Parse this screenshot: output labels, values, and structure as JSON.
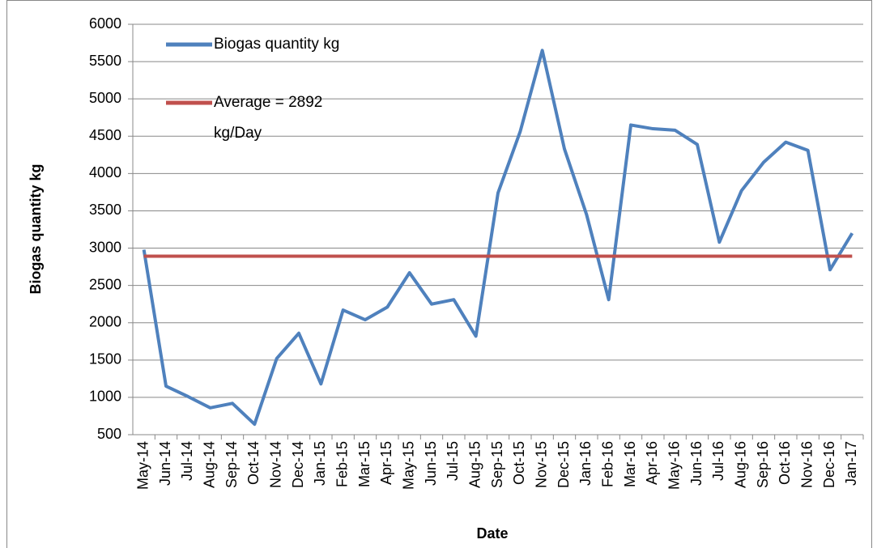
{
  "chart_data": {
    "type": "line",
    "y_label": "Biogas quantity kg",
    "x_label": "Date",
    "categories": [
      "May-14",
      "Jun-14",
      "Jul-14",
      "Aug-14",
      "Sep-14",
      "Oct-14",
      "Nov-14",
      "Dec-14",
      "Jan-15",
      "Feb-15",
      "Mar-15",
      "Apr-15",
      "May-15",
      "Jun-15",
      "Jul-15",
      "Aug-15",
      "Sep-15",
      "Oct-15",
      "Nov-15",
      "Dec-15",
      "Jan-16",
      "Feb-16",
      "Mar-16",
      "Apr-16",
      "May-16",
      "Jun-16",
      "Jul-16",
      "Aug-16",
      "Sep-16",
      "Oct-16",
      "Nov-16",
      "Dec-16",
      "Jan-17"
    ],
    "series": [
      {
        "name": "Biogas quantity kg",
        "color": "#4f81bd",
        "values": [
          2980,
          1150,
          1010,
          860,
          920,
          640,
          1520,
          1860,
          1180,
          2170,
          2040,
          2210,
          2670,
          2250,
          2310,
          1820,
          3740,
          4560,
          5650,
          4330,
          3450,
          2310,
          4650,
          4600,
          4580,
          4390,
          3080,
          3770,
          4150,
          4420,
          4310,
          2710,
          3200
        ]
      },
      {
        "name": "Average = 2892 kg/Day",
        "color": "#c0504d",
        "values": [
          2892,
          2892,
          2892,
          2892,
          2892,
          2892,
          2892,
          2892,
          2892,
          2892,
          2892,
          2892,
          2892,
          2892,
          2892,
          2892,
          2892,
          2892,
          2892,
          2892,
          2892,
          2892,
          2892,
          2892,
          2892,
          2892,
          2892,
          2892,
          2892,
          2892,
          2892,
          2892,
          2892
        ]
      }
    ],
    "ylim": [
      500,
      6000
    ],
    "yticks": [
      500,
      1000,
      1500,
      2000,
      2500,
      3000,
      3500,
      4000,
      4500,
      5000,
      5500,
      6000
    ],
    "grid": true
  }
}
